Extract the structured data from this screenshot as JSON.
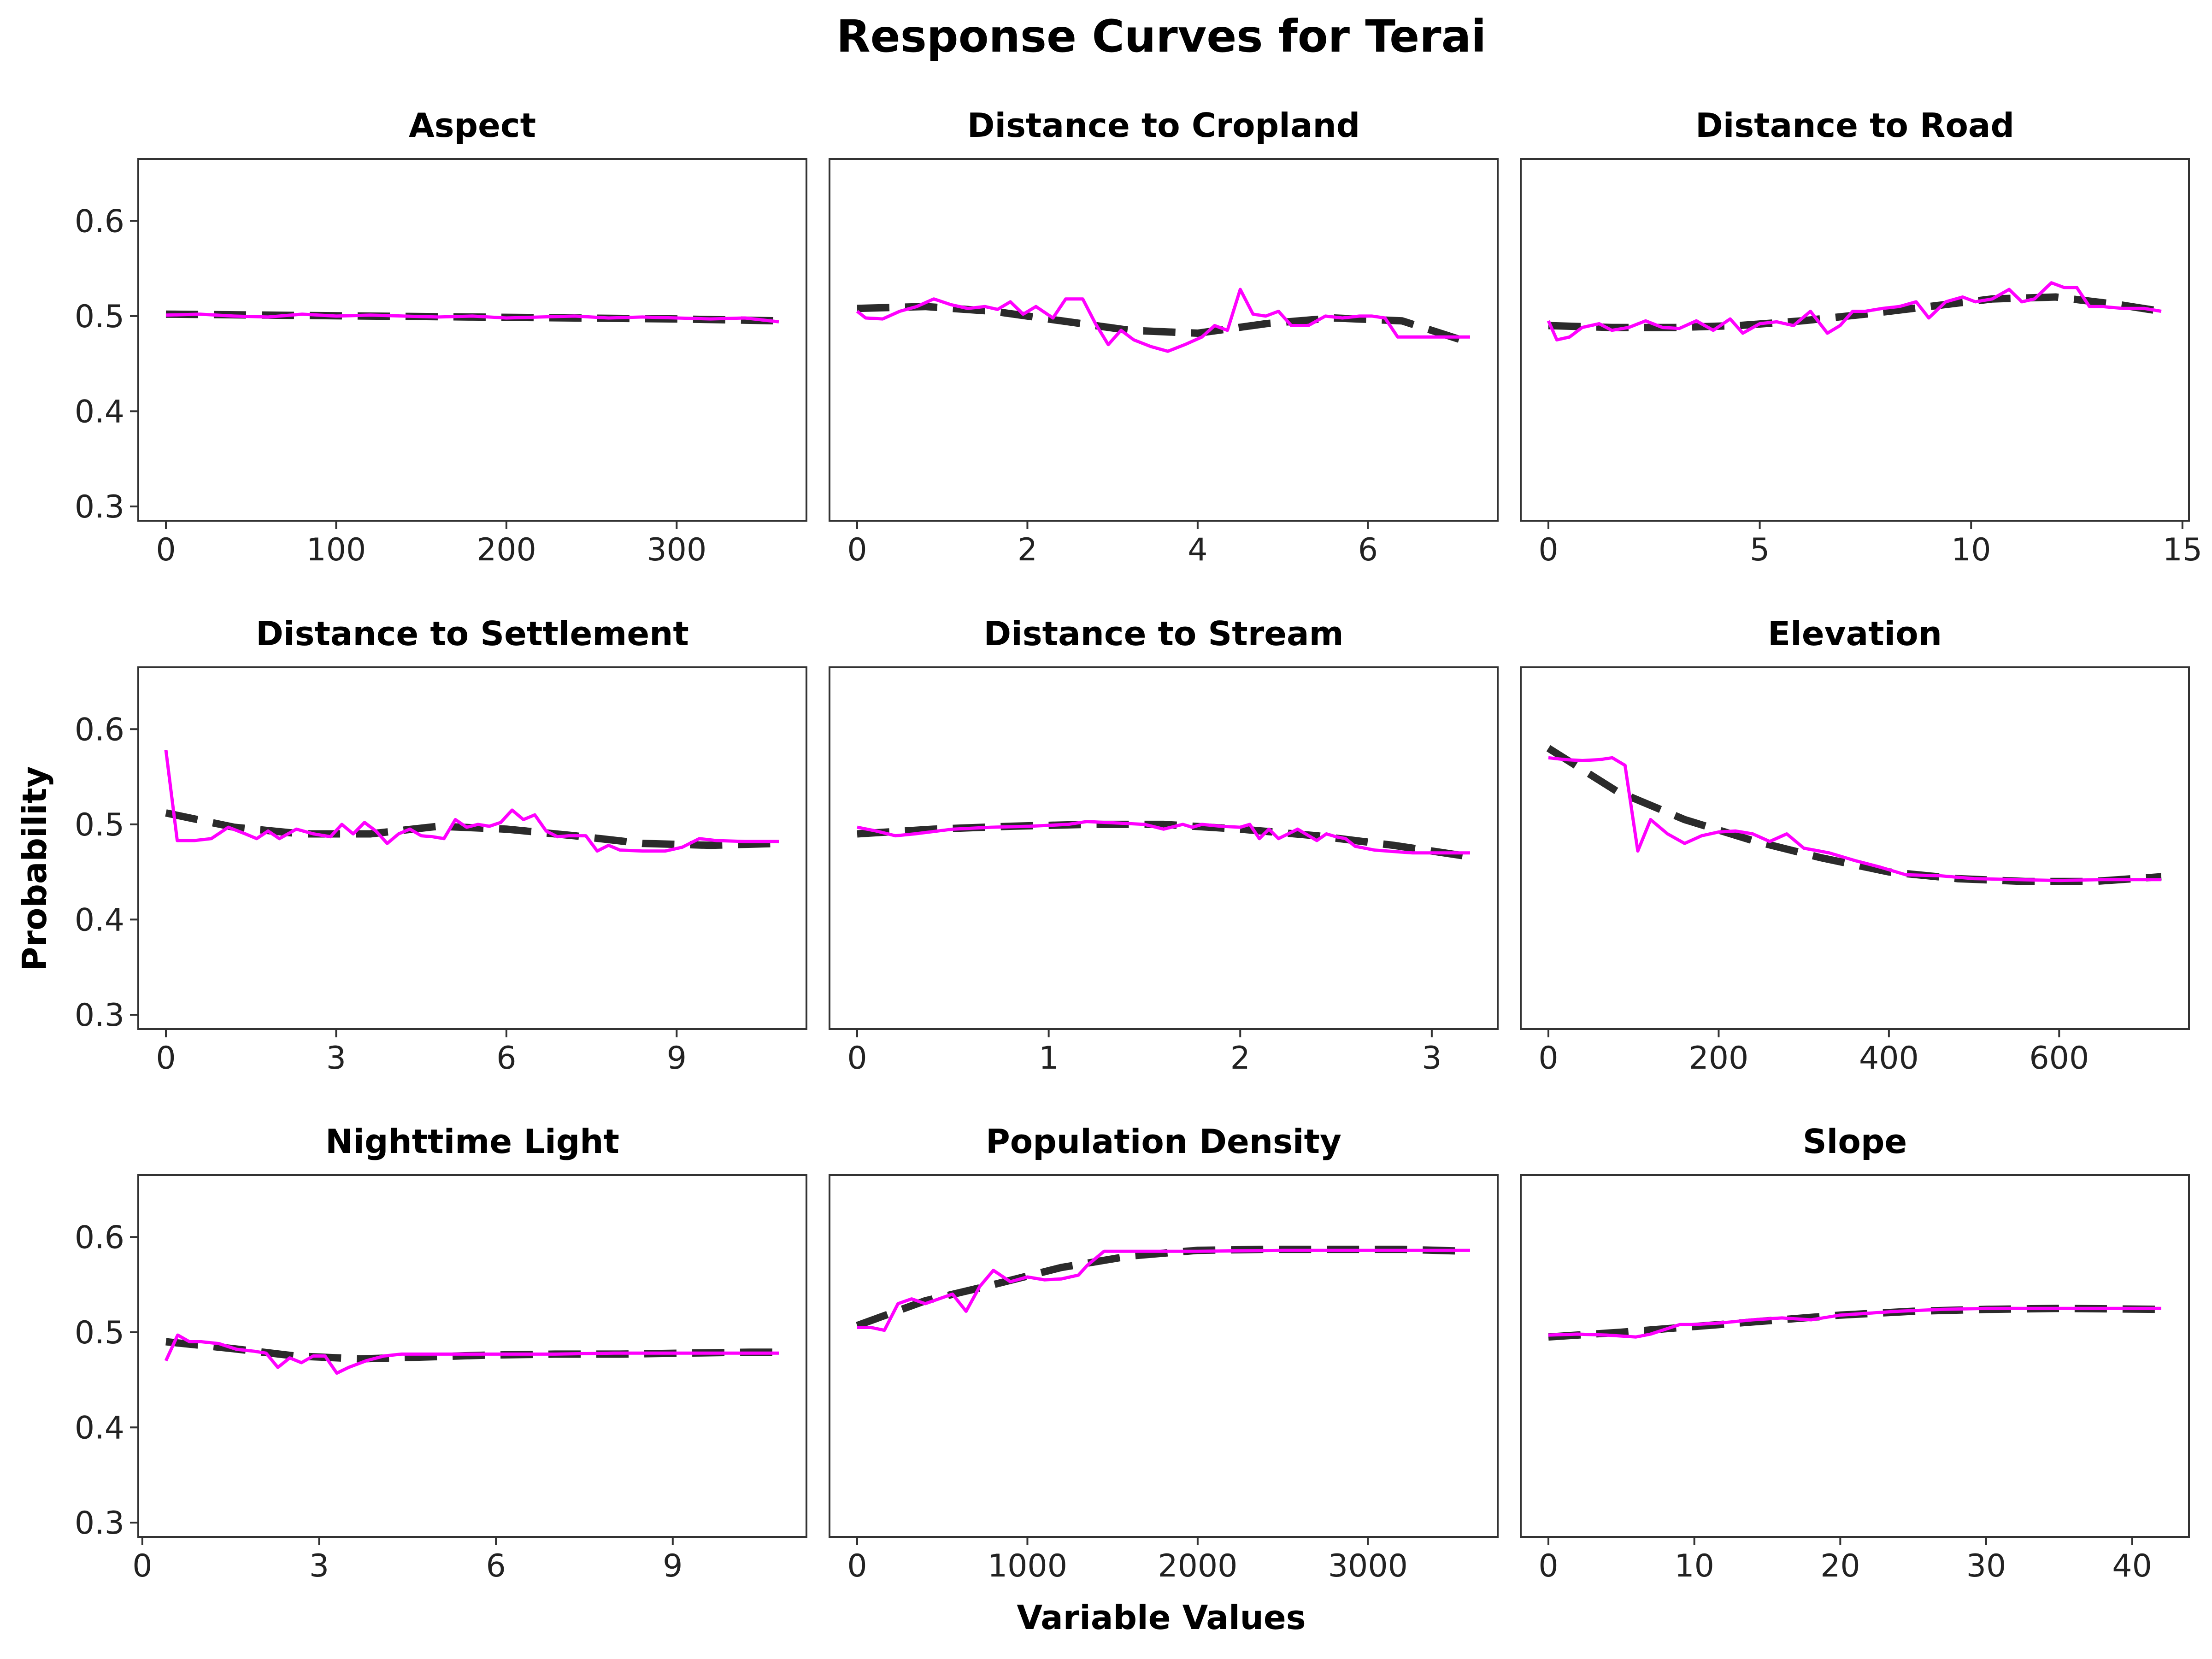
{
  "title": "Response Curves for Terai",
  "xlabel": "Variable Values",
  "ylabel": "Probability",
  "colors": {
    "fitted": "#2b2b2b",
    "observed": "#ff00ff"
  },
  "chart_data": [
    {
      "type": "line",
      "title": "Aspect",
      "xlim": [
        0,
        360
      ],
      "ylim": [
        0.285,
        0.665
      ],
      "x_ticks": [
        0,
        100,
        200,
        300
      ],
      "x_tick_labels": [
        "0",
        "100",
        "200",
        "300"
      ],
      "y_ticks": [
        0.3,
        0.4,
        0.5,
        0.6
      ],
      "y_tick_labels": [
        "0.3",
        "0.4",
        "0.5",
        "0.6"
      ],
      "series": [
        {
          "style": "dashed",
          "x": [
            0,
            60,
            120,
            180,
            240,
            300,
            360
          ],
          "y": [
            0.502,
            0.501,
            0.5,
            0.499,
            0.498,
            0.497,
            0.495
          ]
        },
        {
          "style": "solid",
          "x": [
            0,
            20,
            40,
            60,
            80,
            100,
            120,
            140,
            160,
            180,
            200,
            220,
            240,
            260,
            280,
            300,
            320,
            340,
            360
          ],
          "y": [
            0.501,
            0.502,
            0.5,
            0.499,
            0.502,
            0.5,
            0.501,
            0.5,
            0.499,
            0.5,
            0.498,
            0.499,
            0.5,
            0.498,
            0.499,
            0.498,
            0.497,
            0.498,
            0.494
          ]
        }
      ]
    },
    {
      "type": "line",
      "title": "Distance to Cropland",
      "xlim": [
        0,
        7.2
      ],
      "ylim": [
        0.285,
        0.665
      ],
      "x_ticks": [
        0,
        2,
        4,
        6
      ],
      "x_tick_labels": [
        "0",
        "2",
        "4",
        "6"
      ],
      "y_ticks": [
        0.3,
        0.4,
        0.5,
        0.6
      ],
      "y_tick_labels": [
        "0.3",
        "0.4",
        "0.5",
        "0.6"
      ],
      "series": [
        {
          "style": "dashed",
          "x": [
            0,
            0.8,
            1.6,
            2.4,
            3.2,
            4.0,
            4.8,
            5.6,
            6.4,
            7.2
          ],
          "y": [
            0.508,
            0.51,
            0.505,
            0.495,
            0.485,
            0.482,
            0.492,
            0.498,
            0.495,
            0.472
          ]
        },
        {
          "style": "solid",
          "x": [
            0,
            0.1,
            0.3,
            0.5,
            0.7,
            0.9,
            1.1,
            1.3,
            1.5,
            1.65,
            1.8,
            1.95,
            2.1,
            2.3,
            2.45,
            2.65,
            2.8,
            2.95,
            3.1,
            3.25,
            3.45,
            3.65,
            3.85,
            4.05,
            4.2,
            4.35,
            4.5,
            4.65,
            4.8,
            4.95,
            5.1,
            5.3,
            5.5,
            5.7,
            5.9,
            6.05,
            6.2,
            6.35,
            6.5,
            6.8,
            7.0,
            7.2
          ],
          "y": [
            0.505,
            0.498,
            0.497,
            0.505,
            0.51,
            0.518,
            0.512,
            0.508,
            0.51,
            0.507,
            0.515,
            0.502,
            0.51,
            0.498,
            0.518,
            0.518,
            0.492,
            0.47,
            0.485,
            0.475,
            0.468,
            0.463,
            0.47,
            0.478,
            0.49,
            0.485,
            0.528,
            0.502,
            0.5,
            0.505,
            0.49,
            0.49,
            0.5,
            0.498,
            0.5,
            0.5,
            0.498,
            0.478,
            0.478,
            0.478,
            0.478,
            0.478
          ]
        }
      ]
    },
    {
      "type": "line",
      "title": "Distance to Road",
      "xlim": [
        0,
        14.5
      ],
      "ylim": [
        0.285,
        0.665
      ],
      "x_ticks": [
        0,
        5,
        10,
        15
      ],
      "x_tick_labels": [
        "0",
        "5",
        "10",
        "15"
      ],
      "y_ticks": [
        0.3,
        0.4,
        0.5,
        0.6
      ],
      "y_tick_labels": [
        "0.3",
        "0.4",
        "0.5",
        "0.6"
      ],
      "series": [
        {
          "style": "dashed",
          "x": [
            0,
            1.5,
            3,
            4.5,
            6,
            7.5,
            9,
            10.5,
            12,
            13.5,
            14.5
          ],
          "y": [
            0.49,
            0.488,
            0.488,
            0.49,
            0.495,
            0.502,
            0.51,
            0.518,
            0.52,
            0.512,
            0.505
          ]
        },
        {
          "style": "solid",
          "x": [
            0,
            0.2,
            0.5,
            0.8,
            1.2,
            1.5,
            1.9,
            2.3,
            2.7,
            3.1,
            3.5,
            3.9,
            4.3,
            4.6,
            5.0,
            5.4,
            5.8,
            6.2,
            6.6,
            6.9,
            7.2,
            7.5,
            7.9,
            8.3,
            8.7,
            9.0,
            9.4,
            9.8,
            10.1,
            10.5,
            10.9,
            11.2,
            11.5,
            11.9,
            12.2,
            12.5,
            12.8,
            13.1,
            13.6,
            14.1,
            14.5
          ],
          "y": [
            0.495,
            0.475,
            0.478,
            0.488,
            0.492,
            0.485,
            0.488,
            0.495,
            0.488,
            0.487,
            0.495,
            0.485,
            0.497,
            0.482,
            0.492,
            0.494,
            0.49,
            0.505,
            0.482,
            0.49,
            0.505,
            0.505,
            0.508,
            0.51,
            0.515,
            0.498,
            0.515,
            0.52,
            0.515,
            0.518,
            0.528,
            0.515,
            0.518,
            0.535,
            0.53,
            0.53,
            0.51,
            0.51,
            0.508,
            0.508,
            0.505
          ]
        }
      ]
    },
    {
      "type": "line",
      "title": "Distance to Settlement",
      "xlim": [
        0,
        10.8
      ],
      "ylim": [
        0.285,
        0.665
      ],
      "x_ticks": [
        0,
        3,
        6,
        9
      ],
      "x_tick_labels": [
        "0",
        "3",
        "6",
        "9"
      ],
      "y_ticks": [
        0.3,
        0.4,
        0.5,
        0.6
      ],
      "y_tick_labels": [
        "0.3",
        "0.4",
        "0.5",
        "0.6"
      ],
      "series": [
        {
          "style": "dashed",
          "x": [
            0,
            1.2,
            2.4,
            3.6,
            4.8,
            6.0,
            7.2,
            8.4,
            9.6,
            10.8
          ],
          "y": [
            0.512,
            0.497,
            0.49,
            0.49,
            0.498,
            0.495,
            0.488,
            0.48,
            0.478,
            0.48
          ]
        },
        {
          "style": "solid",
          "x": [
            0,
            0.2,
            0.5,
            0.8,
            1.1,
            1.4,
            1.6,
            1.8,
            2.0,
            2.3,
            2.6,
            2.9,
            3.1,
            3.3,
            3.5,
            3.7,
            3.9,
            4.1,
            4.3,
            4.5,
            4.7,
            4.9,
            5.1,
            5.3,
            5.5,
            5.7,
            5.9,
            6.1,
            6.3,
            6.5,
            6.7,
            6.9,
            7.1,
            7.4,
            7.6,
            7.8,
            8.0,
            8.4,
            8.8,
            9.1,
            9.4,
            9.7,
            10.2,
            10.8
          ],
          "y": [
            0.578,
            0.483,
            0.483,
            0.485,
            0.497,
            0.49,
            0.485,
            0.493,
            0.485,
            0.495,
            0.49,
            0.487,
            0.5,
            0.49,
            0.502,
            0.493,
            0.48,
            0.49,
            0.495,
            0.488,
            0.487,
            0.485,
            0.505,
            0.497,
            0.5,
            0.498,
            0.502,
            0.515,
            0.505,
            0.51,
            0.493,
            0.487,
            0.488,
            0.488,
            0.472,
            0.478,
            0.473,
            0.472,
            0.472,
            0.476,
            0.485,
            0.483,
            0.482,
            0.482
          ]
        }
      ]
    },
    {
      "type": "line",
      "title": "Distance to Stream",
      "xlim": [
        0,
        3.2
      ],
      "ylim": [
        0.285,
        0.665
      ],
      "x_ticks": [
        0,
        1,
        2,
        3
      ],
      "x_tick_labels": [
        "0",
        "1",
        "2",
        "3"
      ],
      "y_ticks": [
        0.3,
        0.4,
        0.5,
        0.6
      ],
      "y_tick_labels": [
        "0.3",
        "0.4",
        "0.5",
        "0.6"
      ],
      "series": [
        {
          "style": "dashed",
          "x": [
            0,
            0.4,
            0.8,
            1.2,
            1.6,
            2.0,
            2.4,
            2.8,
            3.2
          ],
          "y": [
            0.49,
            0.495,
            0.498,
            0.5,
            0.5,
            0.495,
            0.488,
            0.478,
            0.466
          ]
        },
        {
          "style": "solid",
          "x": [
            0,
            0.1,
            0.2,
            0.3,
            0.5,
            0.7,
            0.9,
            1.1,
            1.2,
            1.3,
            1.5,
            1.6,
            1.7,
            1.75,
            1.8,
            1.9,
            2.0,
            2.05,
            2.1,
            2.15,
            2.2,
            2.3,
            2.4,
            2.45,
            2.5,
            2.55,
            2.6,
            2.7,
            2.9,
            3.1,
            3.2
          ],
          "y": [
            0.497,
            0.493,
            0.488,
            0.49,
            0.495,
            0.497,
            0.498,
            0.5,
            0.503,
            0.502,
            0.5,
            0.495,
            0.5,
            0.497,
            0.5,
            0.498,
            0.497,
            0.5,
            0.485,
            0.495,
            0.485,
            0.495,
            0.483,
            0.49,
            0.487,
            0.485,
            0.477,
            0.473,
            0.47,
            0.47,
            0.47
          ]
        }
      ]
    },
    {
      "type": "line",
      "title": "Elevation",
      "xlim": [
        0,
        720
      ],
      "ylim": [
        0.285,
        0.665
      ],
      "x_ticks": [
        0,
        200,
        400,
        600
      ],
      "x_tick_labels": [
        "0",
        "200",
        "400",
        "600"
      ],
      "y_ticks": [
        0.3,
        0.4,
        0.5,
        0.6
      ],
      "y_tick_labels": [
        "0.3",
        "0.4",
        "0.5",
        "0.6"
      ],
      "series": [
        {
          "style": "dashed",
          "x": [
            0,
            80,
            160,
            240,
            320,
            400,
            480,
            560,
            640,
            720
          ],
          "y": [
            0.58,
            0.535,
            0.505,
            0.483,
            0.465,
            0.45,
            0.443,
            0.44,
            0.44,
            0.445
          ]
        },
        {
          "style": "solid",
          "x": [
            0,
            20,
            40,
            60,
            75,
            90,
            105,
            120,
            140,
            160,
            180,
            200,
            220,
            240,
            260,
            280,
            300,
            330,
            360,
            390,
            420,
            460,
            500,
            550,
            600,
            650,
            720
          ],
          "y": [
            0.57,
            0.568,
            0.567,
            0.568,
            0.57,
            0.562,
            0.472,
            0.505,
            0.49,
            0.48,
            0.488,
            0.492,
            0.493,
            0.49,
            0.482,
            0.49,
            0.475,
            0.47,
            0.462,
            0.455,
            0.447,
            0.446,
            0.443,
            0.442,
            0.441,
            0.442,
            0.442
          ]
        }
      ]
    },
    {
      "type": "line",
      "title": "Nighttime Light",
      "xlim": [
        0.4,
        10.8
      ],
      "ylim": [
        0.285,
        0.665
      ],
      "x_ticks": [
        0,
        3,
        6,
        9
      ],
      "x_tick_labels": [
        "0",
        "3",
        "6",
        "9"
      ],
      "y_ticks": [
        0.3,
        0.4,
        0.5,
        0.6
      ],
      "y_tick_labels": [
        "0.3",
        "0.4",
        "0.5",
        "0.6"
      ],
      "series": [
        {
          "style": "dashed",
          "x": [
            0.4,
            1.5,
            2.6,
            3.7,
            4.8,
            5.9,
            7.0,
            8.1,
            9.2,
            10.3,
            10.8
          ],
          "y": [
            0.49,
            0.483,
            0.475,
            0.472,
            0.474,
            0.476,
            0.477,
            0.477,
            0.478,
            0.479,
            0.479
          ]
        },
        {
          "style": "solid",
          "x": [
            0.4,
            0.6,
            0.8,
            1.0,
            1.3,
            1.6,
            1.9,
            2.1,
            2.3,
            2.5,
            2.7,
            2.9,
            3.1,
            3.3,
            3.5,
            3.8,
            4.1,
            4.4,
            5.0,
            6.0,
            7.0,
            8.0,
            9.0,
            10.0,
            10.8
          ],
          "y": [
            0.47,
            0.497,
            0.49,
            0.49,
            0.488,
            0.482,
            0.48,
            0.478,
            0.463,
            0.473,
            0.468,
            0.475,
            0.475,
            0.457,
            0.463,
            0.47,
            0.475,
            0.477,
            0.477,
            0.477,
            0.477,
            0.478,
            0.478,
            0.478,
            0.478
          ]
        }
      ]
    },
    {
      "type": "line",
      "title": "Population Density",
      "xlim": [
        0,
        3600
      ],
      "ylim": [
        0.285,
        0.665
      ],
      "x_ticks": [
        0,
        1000,
        2000,
        3000
      ],
      "x_tick_labels": [
        "0",
        "1000",
        "2000",
        "3000"
      ],
      "y_ticks": [
        0.3,
        0.4,
        0.5,
        0.6
      ],
      "y_tick_labels": [
        "0.3",
        "0.4",
        "0.5",
        "0.6"
      ],
      "series": [
        {
          "style": "dashed",
          "x": [
            0,
            400,
            800,
            1200,
            1600,
            2000,
            2400,
            2800,
            3200,
            3600
          ],
          "y": [
            0.507,
            0.533,
            0.55,
            0.568,
            0.58,
            0.586,
            0.587,
            0.587,
            0.587,
            0.585
          ]
        },
        {
          "style": "solid",
          "x": [
            0,
            80,
            160,
            240,
            320,
            400,
            480,
            560,
            640,
            720,
            800,
            900,
            1000,
            1100,
            1200,
            1300,
            1350,
            1450,
            1600,
            2000,
            2500,
            3000,
            3600
          ],
          "y": [
            0.505,
            0.505,
            0.502,
            0.53,
            0.535,
            0.53,
            0.535,
            0.54,
            0.522,
            0.548,
            0.565,
            0.553,
            0.558,
            0.555,
            0.556,
            0.56,
            0.57,
            0.585,
            0.585,
            0.585,
            0.586,
            0.586,
            0.586
          ]
        }
      ]
    },
    {
      "type": "line",
      "title": "Slope",
      "xlim": [
        0,
        42
      ],
      "ylim": [
        0.285,
        0.665
      ],
      "x_ticks": [
        0,
        10,
        20,
        30,
        40
      ],
      "x_tick_labels": [
        "0",
        "10",
        "20",
        "30",
        "40"
      ],
      "y_ticks": [
        0.3,
        0.4,
        0.5,
        0.6
      ],
      "y_tick_labels": [
        "0.3",
        "0.4",
        "0.5",
        "0.6"
      ],
      "series": [
        {
          "style": "dashed",
          "x": [
            0,
            5,
            10,
            15,
            20,
            25,
            30,
            35,
            42
          ],
          "y": [
            0.495,
            0.5,
            0.506,
            0.512,
            0.518,
            0.522,
            0.524,
            0.525,
            0.524
          ]
        },
        {
          "style": "solid",
          "x": [
            0,
            2,
            4,
            6,
            7,
            8,
            9,
            10,
            12,
            14,
            16,
            18,
            20,
            22,
            24,
            27,
            30,
            33,
            36,
            40,
            42
          ],
          "y": [
            0.497,
            0.498,
            0.497,
            0.495,
            0.498,
            0.503,
            0.508,
            0.508,
            0.51,
            0.513,
            0.515,
            0.513,
            0.518,
            0.52,
            0.522,
            0.524,
            0.525,
            0.525,
            0.525,
            0.525,
            0.525
          ]
        }
      ]
    }
  ]
}
